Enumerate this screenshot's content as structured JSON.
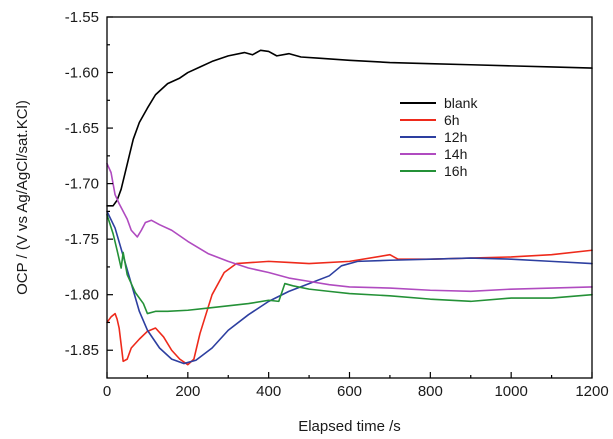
{
  "chart_data": {
    "type": "line",
    "xlabel": "Elapsed time /s",
    "ylabel": "OCP / (V vs Ag/AgCl/sat.KCl)",
    "xlim": [
      0,
      1200
    ],
    "ylim": [
      -1.875,
      -1.55
    ],
    "xticks": [
      "0",
      "200",
      "400",
      "600",
      "800",
      "1000",
      "1200"
    ],
    "yticks": [
      "-1.55",
      "-1.60",
      "-1.65",
      "-1.70",
      "-1.75",
      "-1.80",
      "-1.85"
    ],
    "grid": false,
    "legend_position": "right-center",
    "series": [
      {
        "name": "blank",
        "color": "#000000",
        "points": [
          [
            0,
            -1.72
          ],
          [
            15,
            -1.72
          ],
          [
            25,
            -1.715
          ],
          [
            35,
            -1.705
          ],
          [
            45,
            -1.69
          ],
          [
            55,
            -1.675
          ],
          [
            65,
            -1.66
          ],
          [
            80,
            -1.645
          ],
          [
            100,
            -1.632
          ],
          [
            120,
            -1.62
          ],
          [
            150,
            -1.61
          ],
          [
            180,
            -1.605
          ],
          [
            200,
            -1.6
          ],
          [
            230,
            -1.595
          ],
          [
            260,
            -1.59
          ],
          [
            300,
            -1.585
          ],
          [
            340,
            -1.582
          ],
          [
            360,
            -1.584
          ],
          [
            380,
            -1.58
          ],
          [
            400,
            -1.581
          ],
          [
            420,
            -1.585
          ],
          [
            450,
            -1.583
          ],
          [
            480,
            -1.586
          ],
          [
            520,
            -1.587
          ],
          [
            600,
            -1.589
          ],
          [
            700,
            -1.591
          ],
          [
            800,
            -1.592
          ],
          [
            900,
            -1.593
          ],
          [
            1000,
            -1.594
          ],
          [
            1100,
            -1.595
          ],
          [
            1200,
            -1.596
          ]
        ]
      },
      {
        "name": "6h",
        "color": "#ee2a1b",
        "points": [
          [
            0,
            -1.825
          ],
          [
            10,
            -1.82
          ],
          [
            20,
            -1.817
          ],
          [
            25,
            -1.822
          ],
          [
            30,
            -1.83
          ],
          [
            40,
            -1.86
          ],
          [
            50,
            -1.858
          ],
          [
            60,
            -1.848
          ],
          [
            80,
            -1.84
          ],
          [
            100,
            -1.833
          ],
          [
            120,
            -1.83
          ],
          [
            140,
            -1.838
          ],
          [
            160,
            -1.85
          ],
          [
            180,
            -1.858
          ],
          [
            200,
            -1.863
          ],
          [
            215,
            -1.858
          ],
          [
            230,
            -1.835
          ],
          [
            260,
            -1.8
          ],
          [
            290,
            -1.78
          ],
          [
            320,
            -1.772
          ],
          [
            360,
            -1.771
          ],
          [
            400,
            -1.77
          ],
          [
            450,
            -1.771
          ],
          [
            500,
            -1.772
          ],
          [
            600,
            -1.77
          ],
          [
            700,
            -1.764
          ],
          [
            720,
            -1.768
          ],
          [
            800,
            -1.768
          ],
          [
            900,
            -1.767
          ],
          [
            1000,
            -1.766
          ],
          [
            1100,
            -1.764
          ],
          [
            1200,
            -1.76
          ]
        ]
      },
      {
        "name": "12h",
        "color": "#2d3fa0",
        "points": [
          [
            0,
            -1.725
          ],
          [
            20,
            -1.74
          ],
          [
            40,
            -1.765
          ],
          [
            60,
            -1.79
          ],
          [
            80,
            -1.815
          ],
          [
            100,
            -1.832
          ],
          [
            130,
            -1.848
          ],
          [
            160,
            -1.858
          ],
          [
            190,
            -1.862
          ],
          [
            220,
            -1.859
          ],
          [
            260,
            -1.848
          ],
          [
            300,
            -1.832
          ],
          [
            350,
            -1.818
          ],
          [
            400,
            -1.806
          ],
          [
            450,
            -1.797
          ],
          [
            500,
            -1.79
          ],
          [
            550,
            -1.783
          ],
          [
            580,
            -1.774
          ],
          [
            620,
            -1.77
          ],
          [
            700,
            -1.769
          ],
          [
            800,
            -1.768
          ],
          [
            900,
            -1.767
          ],
          [
            1000,
            -1.768
          ],
          [
            1100,
            -1.77
          ],
          [
            1200,
            -1.772
          ]
        ]
      },
      {
        "name": "14h",
        "color": "#b04bc0",
        "points": [
          [
            0,
            -1.682
          ],
          [
            10,
            -1.69
          ],
          [
            20,
            -1.71
          ],
          [
            30,
            -1.718
          ],
          [
            40,
            -1.725
          ],
          [
            50,
            -1.732
          ],
          [
            60,
            -1.742
          ],
          [
            75,
            -1.748
          ],
          [
            85,
            -1.742
          ],
          [
            95,
            -1.735
          ],
          [
            110,
            -1.733
          ],
          [
            130,
            -1.737
          ],
          [
            160,
            -1.742
          ],
          [
            200,
            -1.752
          ],
          [
            250,
            -1.763
          ],
          [
            300,
            -1.77
          ],
          [
            350,
            -1.776
          ],
          [
            400,
            -1.78
          ],
          [
            450,
            -1.785
          ],
          [
            500,
            -1.788
          ],
          [
            550,
            -1.791
          ],
          [
            600,
            -1.793
          ],
          [
            700,
            -1.794
          ],
          [
            800,
            -1.796
          ],
          [
            900,
            -1.797
          ],
          [
            1000,
            -1.795
          ],
          [
            1100,
            -1.794
          ],
          [
            1200,
            -1.793
          ]
        ]
      },
      {
        "name": "16h",
        "color": "#249137",
        "points": [
          [
            0,
            -1.728
          ],
          [
            15,
            -1.745
          ],
          [
            25,
            -1.76
          ],
          [
            35,
            -1.776
          ],
          [
            40,
            -1.762
          ],
          [
            50,
            -1.782
          ],
          [
            70,
            -1.798
          ],
          [
            90,
            -1.808
          ],
          [
            100,
            -1.817
          ],
          [
            120,
            -1.815
          ],
          [
            150,
            -1.815
          ],
          [
            200,
            -1.814
          ],
          [
            250,
            -1.812
          ],
          [
            300,
            -1.81
          ],
          [
            350,
            -1.808
          ],
          [
            400,
            -1.805
          ],
          [
            425,
            -1.806
          ],
          [
            440,
            -1.79
          ],
          [
            460,
            -1.792
          ],
          [
            500,
            -1.795
          ],
          [
            550,
            -1.797
          ],
          [
            600,
            -1.799
          ],
          [
            700,
            -1.801
          ],
          [
            800,
            -1.804
          ],
          [
            900,
            -1.806
          ],
          [
            1000,
            -1.803
          ],
          [
            1100,
            -1.803
          ],
          [
            1200,
            -1.8
          ]
        ]
      }
    ]
  }
}
